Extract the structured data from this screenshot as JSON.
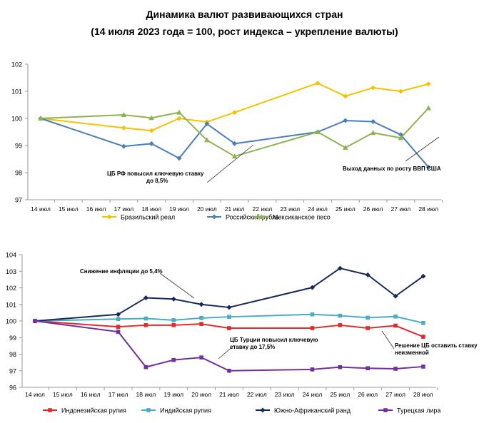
{
  "title": {
    "line1": "Динамика валют развивающихся стран",
    "line2": "(14 июля 2023 года = 100, рост индекса – укрепление валюты)"
  },
  "chart_data": [
    {
      "type": "line",
      "categories": [
        "14 июл",
        "15 июл",
        "16 июл",
        "17 июл",
        "18 июл",
        "19 июл",
        "20 июл",
        "21 июл",
        "22 июл",
        "23 июл",
        "24 июл",
        "25 июл",
        "26 июл",
        "27 июл",
        "28 июл"
      ],
      "ylim": [
        97,
        102
      ],
      "yticks": [
        "97",
        "98",
        "99",
        "100",
        "101",
        "102"
      ],
      "grid": false,
      "legend_position": "bottom",
      "series": [
        {
          "name": "Бразильский реал",
          "color": "#f5c200",
          "values": [
            100,
            null,
            null,
            99.65,
            99.55,
            100.0,
            99.87,
            100.22,
            null,
            null,
            101.3,
            100.82,
            101.13,
            101.0,
            101.27
          ]
        },
        {
          "name": "Российский рубль",
          "color": "#4a7ebb",
          "values": [
            100,
            null,
            null,
            98.97,
            99.07,
            98.53,
            99.8,
            99.07,
            null,
            null,
            99.5,
            99.92,
            99.88,
            99.4,
            98.2
          ]
        },
        {
          "name": "Мексиканское песо",
          "color": "#8db450",
          "values": [
            100,
            null,
            null,
            100.13,
            100.02,
            100.22,
            99.2,
            98.6,
            null,
            null,
            99.5,
            98.92,
            99.47,
            99.28,
            100.38
          ]
        }
      ],
      "annotations": [
        {
          "lines": [
            "ЦБ РФ повысил ключевую ставку",
            "до 8,5%"
          ]
        },
        {
          "lines": [
            "Выход данных по росту ВВП США"
          ]
        }
      ]
    },
    {
      "type": "line",
      "categories": [
        "14 июл",
        "15 июл",
        "16 июл",
        "17 июл",
        "18 июл",
        "19 июл",
        "20 июл",
        "21 июл",
        "22 июл",
        "23 июл",
        "24 июл",
        "25 июл",
        "26 июл",
        "27 июл",
        "28 июл"
      ],
      "ylim": [
        96,
        104
      ],
      "yticks": [
        "96",
        "97",
        "98",
        "99",
        "100",
        "101",
        "102",
        "103",
        "104"
      ],
      "grid": false,
      "legend_position": "bottom",
      "series": [
        {
          "name": "Индонезийская рупия",
          "color": "#e32b2b",
          "values": [
            100,
            null,
            null,
            99.65,
            99.75,
            99.75,
            99.82,
            99.57,
            null,
            null,
            99.57,
            99.75,
            99.57,
            99.72,
            99.05
          ]
        },
        {
          "name": "Индийская рупия",
          "color": "#4bacc6",
          "values": [
            100,
            null,
            null,
            100.12,
            100.15,
            100.05,
            100.18,
            100.25,
            null,
            null,
            100.4,
            100.32,
            100.2,
            100.27,
            99.88
          ]
        },
        {
          "name": "Южно-Африканский ранд",
          "color": "#17285e",
          "values": [
            100,
            null,
            null,
            100.4,
            101.4,
            101.32,
            101.0,
            100.82,
            null,
            null,
            102.02,
            103.18,
            102.78,
            101.5,
            102.7
          ]
        },
        {
          "name": "Турецкая лира",
          "color": "#7030a0",
          "values": [
            100,
            null,
            null,
            99.35,
            97.22,
            97.65,
            97.8,
            97.0,
            null,
            null,
            97.08,
            97.22,
            97.15,
            97.12,
            97.25
          ]
        }
      ],
      "annotations": [
        {
          "lines": [
            "Снижение инфляции до 5,4%"
          ]
        },
        {
          "lines": [
            "ЦБ Турции повысил ключевую",
            "ставку до 17,5%"
          ]
        },
        {
          "lines": [
            "Решение ЦБ оставить ставку",
            "неизменной"
          ]
        }
      ]
    }
  ]
}
